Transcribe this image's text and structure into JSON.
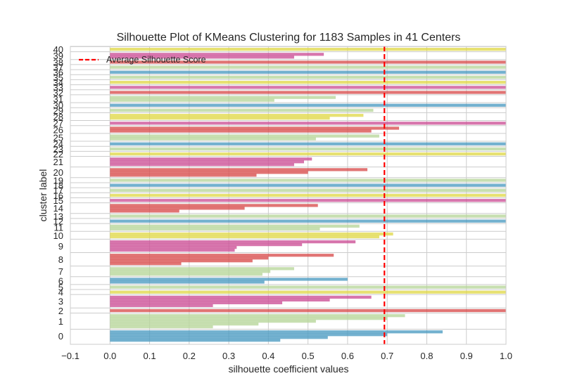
{
  "chart_data": {
    "type": "bar",
    "title": "Silhouette Plot of KMeans Clustering for 1183 Samples in 41 Centers",
    "xlabel": "silhouette coefficient values",
    "ylabel": "cluster label",
    "xlim": [
      -0.1,
      1.0
    ],
    "xticks": [
      "−0.1",
      "0.0",
      "0.1",
      "0.2",
      "0.3",
      "0.4",
      "0.5",
      "0.6",
      "0.7",
      "0.8",
      "0.9",
      "1.0"
    ],
    "grid": true,
    "legend": {
      "position": "top-left",
      "entries": [
        "Average Silhouette Score"
      ]
    },
    "average_silhouette_score": 0.693,
    "average_line_color": "#ff0000",
    "palette": [
      "#4c9bc1",
      "#b7d69a",
      "#d94d4d",
      "#cc5096",
      "#67a9cf",
      "#e0d84a"
    ],
    "clusters": [
      {
        "label": "0",
        "color": "#4c9bc1",
        "values": [
          0.84,
          0.7,
          0.55,
          0.43
        ]
      },
      {
        "label": "1",
        "color": "#b7d69a",
        "values": [
          0.745,
          0.7,
          0.52,
          0.375,
          0.26
        ]
      },
      {
        "label": "2",
        "color": "#d94d4d",
        "values": [
          1.0
        ]
      },
      {
        "label": "3",
        "color": "#cc5096",
        "values": [
          0.66,
          0.555,
          0.435,
          0.26
        ]
      },
      {
        "label": "4",
        "color": "#e0d84a",
        "values": [
          1.0
        ]
      },
      {
        "label": "5",
        "color": "#b7d69a",
        "values": [
          1.0
        ]
      },
      {
        "label": "6",
        "color": "#4c9bc1",
        "values": [
          0.6,
          0.39
        ]
      },
      {
        "label": "7",
        "color": "#b7d69a",
        "values": [
          0.465,
          0.405,
          0.385
        ]
      },
      {
        "label": "8",
        "color": "#d94d4d",
        "values": [
          0.565,
          0.4,
          0.36,
          0.18
        ]
      },
      {
        "label": "9",
        "color": "#cc5096",
        "values": [
          0.62,
          0.485,
          0.32,
          0.315
        ]
      },
      {
        "label": "10",
        "color": "#e0d84a",
        "values": [
          0.715,
          0.68
        ]
      },
      {
        "label": "11",
        "color": "#b7d69a",
        "values": [
          0.63,
          0.53
        ]
      },
      {
        "label": "12",
        "color": "#4c9bc1",
        "values": [
          1.0
        ]
      },
      {
        "label": "13",
        "color": "#b7d69a",
        "values": [
          1.0
        ]
      },
      {
        "label": "14",
        "color": "#d94d4d",
        "values": [
          0.525,
          0.34,
          0.175
        ]
      },
      {
        "label": "15",
        "color": "#cc5096",
        "values": [
          1.0
        ]
      },
      {
        "label": "16",
        "color": "#e0d84a",
        "values": [
          1.0
        ]
      },
      {
        "label": "17",
        "color": "#b7d69a",
        "values": [
          1.0
        ]
      },
      {
        "label": "18",
        "color": "#4c9bc1",
        "values": [
          1.0
        ]
      },
      {
        "label": "19",
        "color": "#b7d69a",
        "values": [
          1.0
        ]
      },
      {
        "label": "20",
        "color": "#d94d4d",
        "values": [
          0.65,
          0.5,
          0.37
        ]
      },
      {
        "label": "21",
        "color": "#cc5096",
        "values": [
          0.51,
          0.49,
          0.465
        ]
      },
      {
        "label": "22",
        "color": "#e0d84a",
        "values": [
          1.0
        ]
      },
      {
        "label": "23",
        "color": "#b7d69a",
        "values": [
          1.0
        ]
      },
      {
        "label": "24",
        "color": "#4c9bc1",
        "values": [
          1.0
        ]
      },
      {
        "label": "25",
        "color": "#b7d69a",
        "values": [
          0.68,
          0.52
        ]
      },
      {
        "label": "26",
        "color": "#d94d4d",
        "values": [
          0.73,
          0.66
        ]
      },
      {
        "label": "27",
        "color": "#cc5096",
        "values": [
          1.0
        ]
      },
      {
        "label": "28",
        "color": "#e0d84a",
        "values": [
          0.64,
          0.555
        ]
      },
      {
        "label": "29",
        "color": "#b7d69a",
        "values": [
          0.665
        ]
      },
      {
        "label": "30",
        "color": "#4c9bc1",
        "values": [
          1.0
        ]
      },
      {
        "label": "31",
        "color": "#b7d69a",
        "values": [
          0.57,
          0.415
        ]
      },
      {
        "label": "32",
        "color": "#d94d4d",
        "values": [
          1.0
        ]
      },
      {
        "label": "33",
        "color": "#cc5096",
        "values": [
          1.0
        ]
      },
      {
        "label": "34",
        "color": "#e0d84a",
        "values": [
          1.0
        ]
      },
      {
        "label": "35",
        "color": "#b7d69a",
        "values": [
          1.0
        ]
      },
      {
        "label": "36",
        "color": "#4c9bc1",
        "values": [
          1.0
        ]
      },
      {
        "label": "37",
        "color": "#b7d69a",
        "values": [
          1.0
        ]
      },
      {
        "label": "38",
        "color": "#d94d4d",
        "values": [
          1.0
        ]
      },
      {
        "label": "39",
        "color": "#cc5096",
        "values": [
          0.54,
          0.465
        ]
      },
      {
        "label": "40",
        "color": "#e0d84a",
        "values": [
          1.0
        ]
      }
    ]
  }
}
